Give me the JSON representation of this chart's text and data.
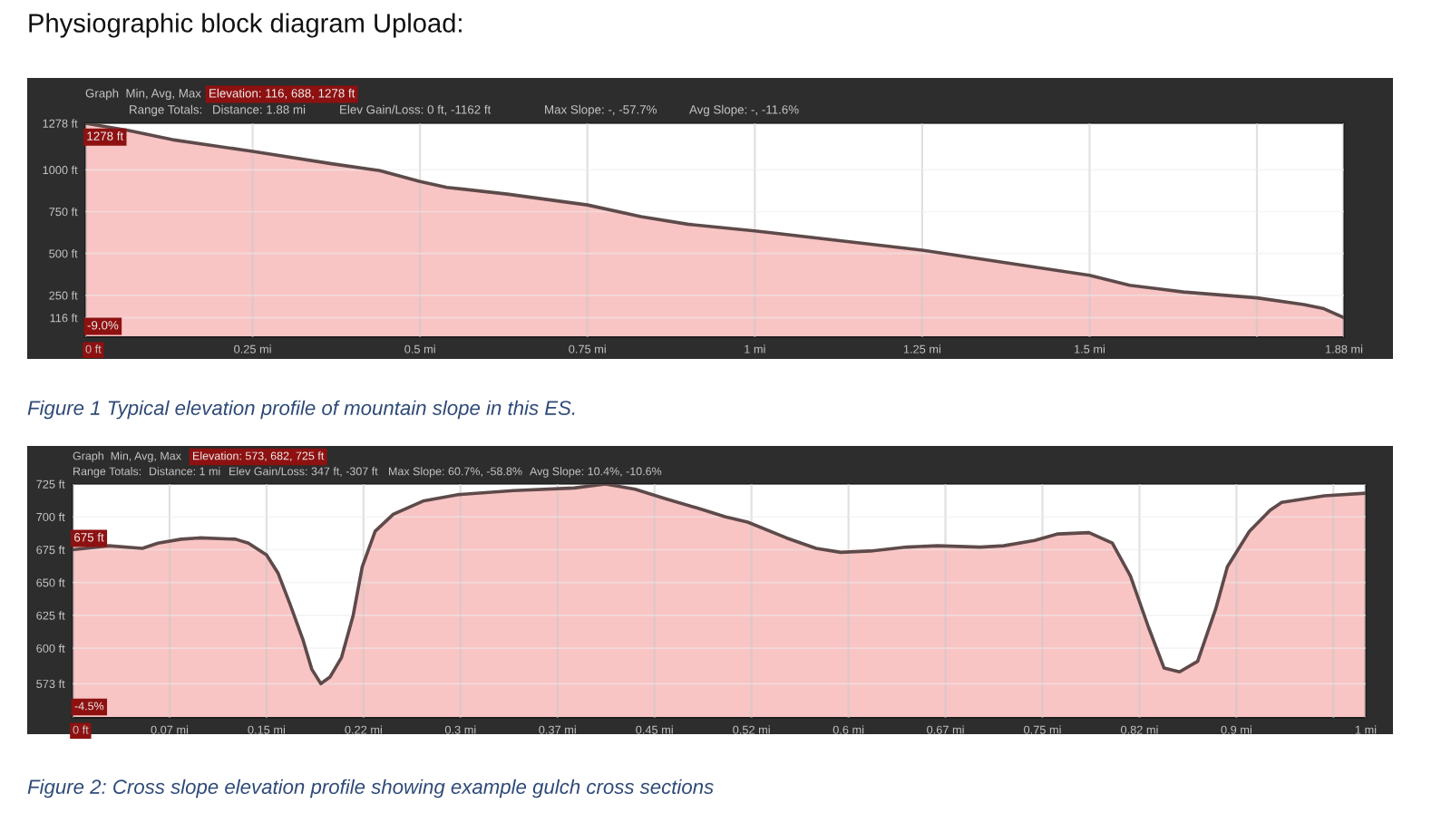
{
  "chart_data": [
    {
      "type": "area",
      "title": "Physiographic block diagram Upload:",
      "x": [
        0,
        0.065,
        0.13,
        0.25,
        0.37,
        0.44,
        0.5,
        0.54,
        0.63,
        0.75,
        0.83,
        0.9,
        1.0,
        1.25,
        1.5,
        1.56,
        1.64,
        1.75,
        1.82,
        1.85,
        1.88
      ],
      "series": [
        {
          "color": "#f9c4c4",
          "values": [
            1278,
            1235,
            1180,
            1110,
            1035,
            995,
            930,
            895,
            855,
            790,
            720,
            675,
            635,
            520,
            370,
            310,
            270,
            235,
            195,
            170,
            116
          ]
        }
      ],
      "xlim": [
        0,
        1.88
      ],
      "xticks": [
        {
          "value": 0,
          "label": "0 ft"
        },
        {
          "value": 0.25,
          "label": "0.25 mi"
        },
        {
          "value": 0.5,
          "label": "0.5 mi"
        },
        {
          "value": 0.75,
          "label": "0.75 mi"
        },
        {
          "value": 1,
          "label": "1 mi"
        },
        {
          "value": 1.25,
          "label": "1.25 mi"
        },
        {
          "value": 1.5,
          "label": "1.5 mi"
        },
        {
          "value": 1.75,
          "label": null
        },
        {
          "value": 1.88,
          "label": "1.88 mi"
        }
      ],
      "ylim": [
        0,
        1278
      ],
      "yticks": [
        {
          "value": 116,
          "label": "116 ft"
        },
        {
          "value": 250,
          "label": "250 ft"
        },
        {
          "value": 500,
          "label": "500 ft"
        },
        {
          "value": 750,
          "label": "750 ft"
        },
        {
          "value": 1000,
          "label": "1000 ft"
        },
        {
          "value": 1278,
          "label": "1278 ft"
        }
      ],
      "grid": true,
      "annotations": [
        "Graph  Min, Avg, Max",
        "Elevation: 116, 688, 1278 ft",
        "Range Totals:",
        "Distance: 1.88 mi",
        "Elev Gain/Loss: 0 ft, -1162 ft",
        "Max Slope: -, -57.7%",
        "Avg Slope: -, -11.6%",
        {
          "text": "1278 ft",
          "x": 0,
          "y": 1278
        },
        "-9.0%",
        "Figure 1 Typical elevation profile of mountain slope in this ES."
      ]
    },
    {
      "type": "area",
      "x": [
        0,
        0.028,
        0.054,
        0.066,
        0.084,
        0.098,
        0.126,
        0.136,
        0.15,
        0.159,
        0.168,
        0.178,
        0.185,
        0.192,
        0.199,
        0.208,
        0.217,
        0.224,
        0.234,
        0.248,
        0.271,
        0.299,
        0.341,
        0.388,
        0.412,
        0.435,
        0.458,
        0.482,
        0.505,
        0.522,
        0.552,
        0.575,
        0.594,
        0.617,
        0.645,
        0.669,
        0.702,
        0.72,
        0.744,
        0.762,
        0.786,
        0.804,
        0.818,
        0.832,
        0.844,
        0.856,
        0.87,
        0.884,
        0.893,
        0.91,
        0.926,
        0.935,
        0.968,
        1.0
      ],
      "series": [
        {
          "color": "#f9c4c4",
          "values": [
            675,
            678,
            676,
            680,
            683,
            684,
            683,
            680,
            671,
            657,
            634,
            607,
            584,
            573,
            578,
            593,
            625,
            662,
            689,
            702,
            712,
            717,
            720,
            722,
            725,
            721,
            714,
            707,
            700,
            696,
            684,
            676,
            673,
            674,
            677,
            678,
            677,
            678,
            682,
            687,
            688,
            680,
            655,
            616,
            585,
            582,
            590,
            630,
            662,
            689,
            705,
            711,
            716,
            718
          ]
        }
      ],
      "xlim": [
        0,
        1
      ],
      "xticks": [
        {
          "value": 0,
          "label": "0 ft"
        },
        {
          "value": 0.075,
          "label": "0.07 mi"
        },
        {
          "value": 0.15,
          "label": "0.15 mi"
        },
        {
          "value": 0.225,
          "label": "0.22 mi"
        },
        {
          "value": 0.3,
          "label": "0.3 mi"
        },
        {
          "value": 0.375,
          "label": "0.37 mi"
        },
        {
          "value": 0.45,
          "label": "0.45 mi"
        },
        {
          "value": 0.525,
          "label": "0.52 mi"
        },
        {
          "value": 0.6,
          "label": "0.6 mi"
        },
        {
          "value": 0.675,
          "label": "0.67 mi"
        },
        {
          "value": 0.75,
          "label": "0.75 mi"
        },
        {
          "value": 0.825,
          "label": "0.82 mi"
        },
        {
          "value": 0.9,
          "label": "0.9 mi"
        },
        {
          "value": 0.975,
          "label": null
        },
        {
          "value": 1,
          "label": "1 mi"
        }
      ],
      "ylim": [
        547,
        725
      ],
      "yticks": [
        {
          "value": 573,
          "label": "573 ft"
        },
        {
          "value": 600,
          "label": "600 ft"
        },
        {
          "value": 625,
          "label": "625 ft"
        },
        {
          "value": 650,
          "label": "650 ft"
        },
        {
          "value": 675,
          "label": "675 ft"
        },
        {
          "value": 700,
          "label": "700 ft"
        },
        {
          "value": 725,
          "label": "725 ft"
        }
      ],
      "grid": true,
      "annotations": [
        "Graph  Min, Avg, Max",
        "Elevation: 573, 682, 725 ft",
        "Range Totals:",
        "Distance: 1 mi",
        "Elev Gain/Loss: 347 ft, -307 ft",
        "Max Slope: 60.7%, -58.8%",
        "Avg Slope: 10.4%, -10.6%",
        {
          "text": "675 ft",
          "x": 0,
          "y": 675
        },
        "-4.5%",
        "Figure 2: Cross slope elevation profile showing example gulch cross sections"
      ]
    }
  ]
}
